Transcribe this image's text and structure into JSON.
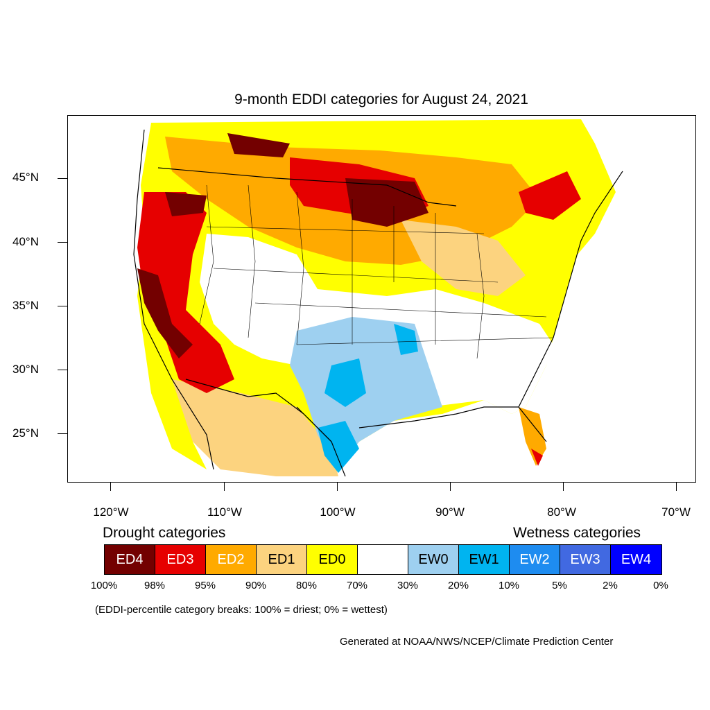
{
  "title": "9-month EDDI categories for August 24, 2021",
  "latitude_labels": [
    "45°N",
    "40°N",
    "35°N",
    "30°N",
    "25°N"
  ],
  "longitude_labels": [
    "120°W",
    "110°W",
    "100°W",
    "90°W",
    "80°W",
    "70°W"
  ],
  "legend": {
    "drought_title": "Drought categories",
    "wetness_title": "Wetness categories",
    "categories": [
      {
        "label": "ED4",
        "color": "#730000",
        "text_color": "#ffffff"
      },
      {
        "label": "ED3",
        "color": "#e60000",
        "text_color": "#ffffff"
      },
      {
        "label": "ED2",
        "color": "#ffaa00",
        "text_color": "#ffffff"
      },
      {
        "label": "ED1",
        "color": "#fcd37f",
        "text_color": "#000000"
      },
      {
        "label": "ED0",
        "color": "#ffff00",
        "text_color": "#000000"
      },
      {
        "label": "",
        "color": "#ffffff",
        "text_color": "#000000"
      },
      {
        "label": "EW0",
        "color": "#9ed0f0",
        "text_color": "#000000"
      },
      {
        "label": "EW1",
        "color": "#00b4f0",
        "text_color": "#000000"
      },
      {
        "label": "EW2",
        "color": "#1e8cf0",
        "text_color": "#ffffff"
      },
      {
        "label": "EW3",
        "color": "#4169e1",
        "text_color": "#ffffff"
      },
      {
        "label": "EW4",
        "color": "#0000ff",
        "text_color": "#ffffff"
      }
    ],
    "percentiles": [
      "100%",
      "98%",
      "95%",
      "90%",
      "80%",
      "70%",
      "30%",
      "20%",
      "10%",
      "5%",
      "2%",
      "0%"
    ]
  },
  "note": "(EDDI-percentile category breaks: 100% = driest; 0% = wettest)",
  "credit": "Generated at NOAA/NWS/NCEP/Climate Prediction Center"
}
